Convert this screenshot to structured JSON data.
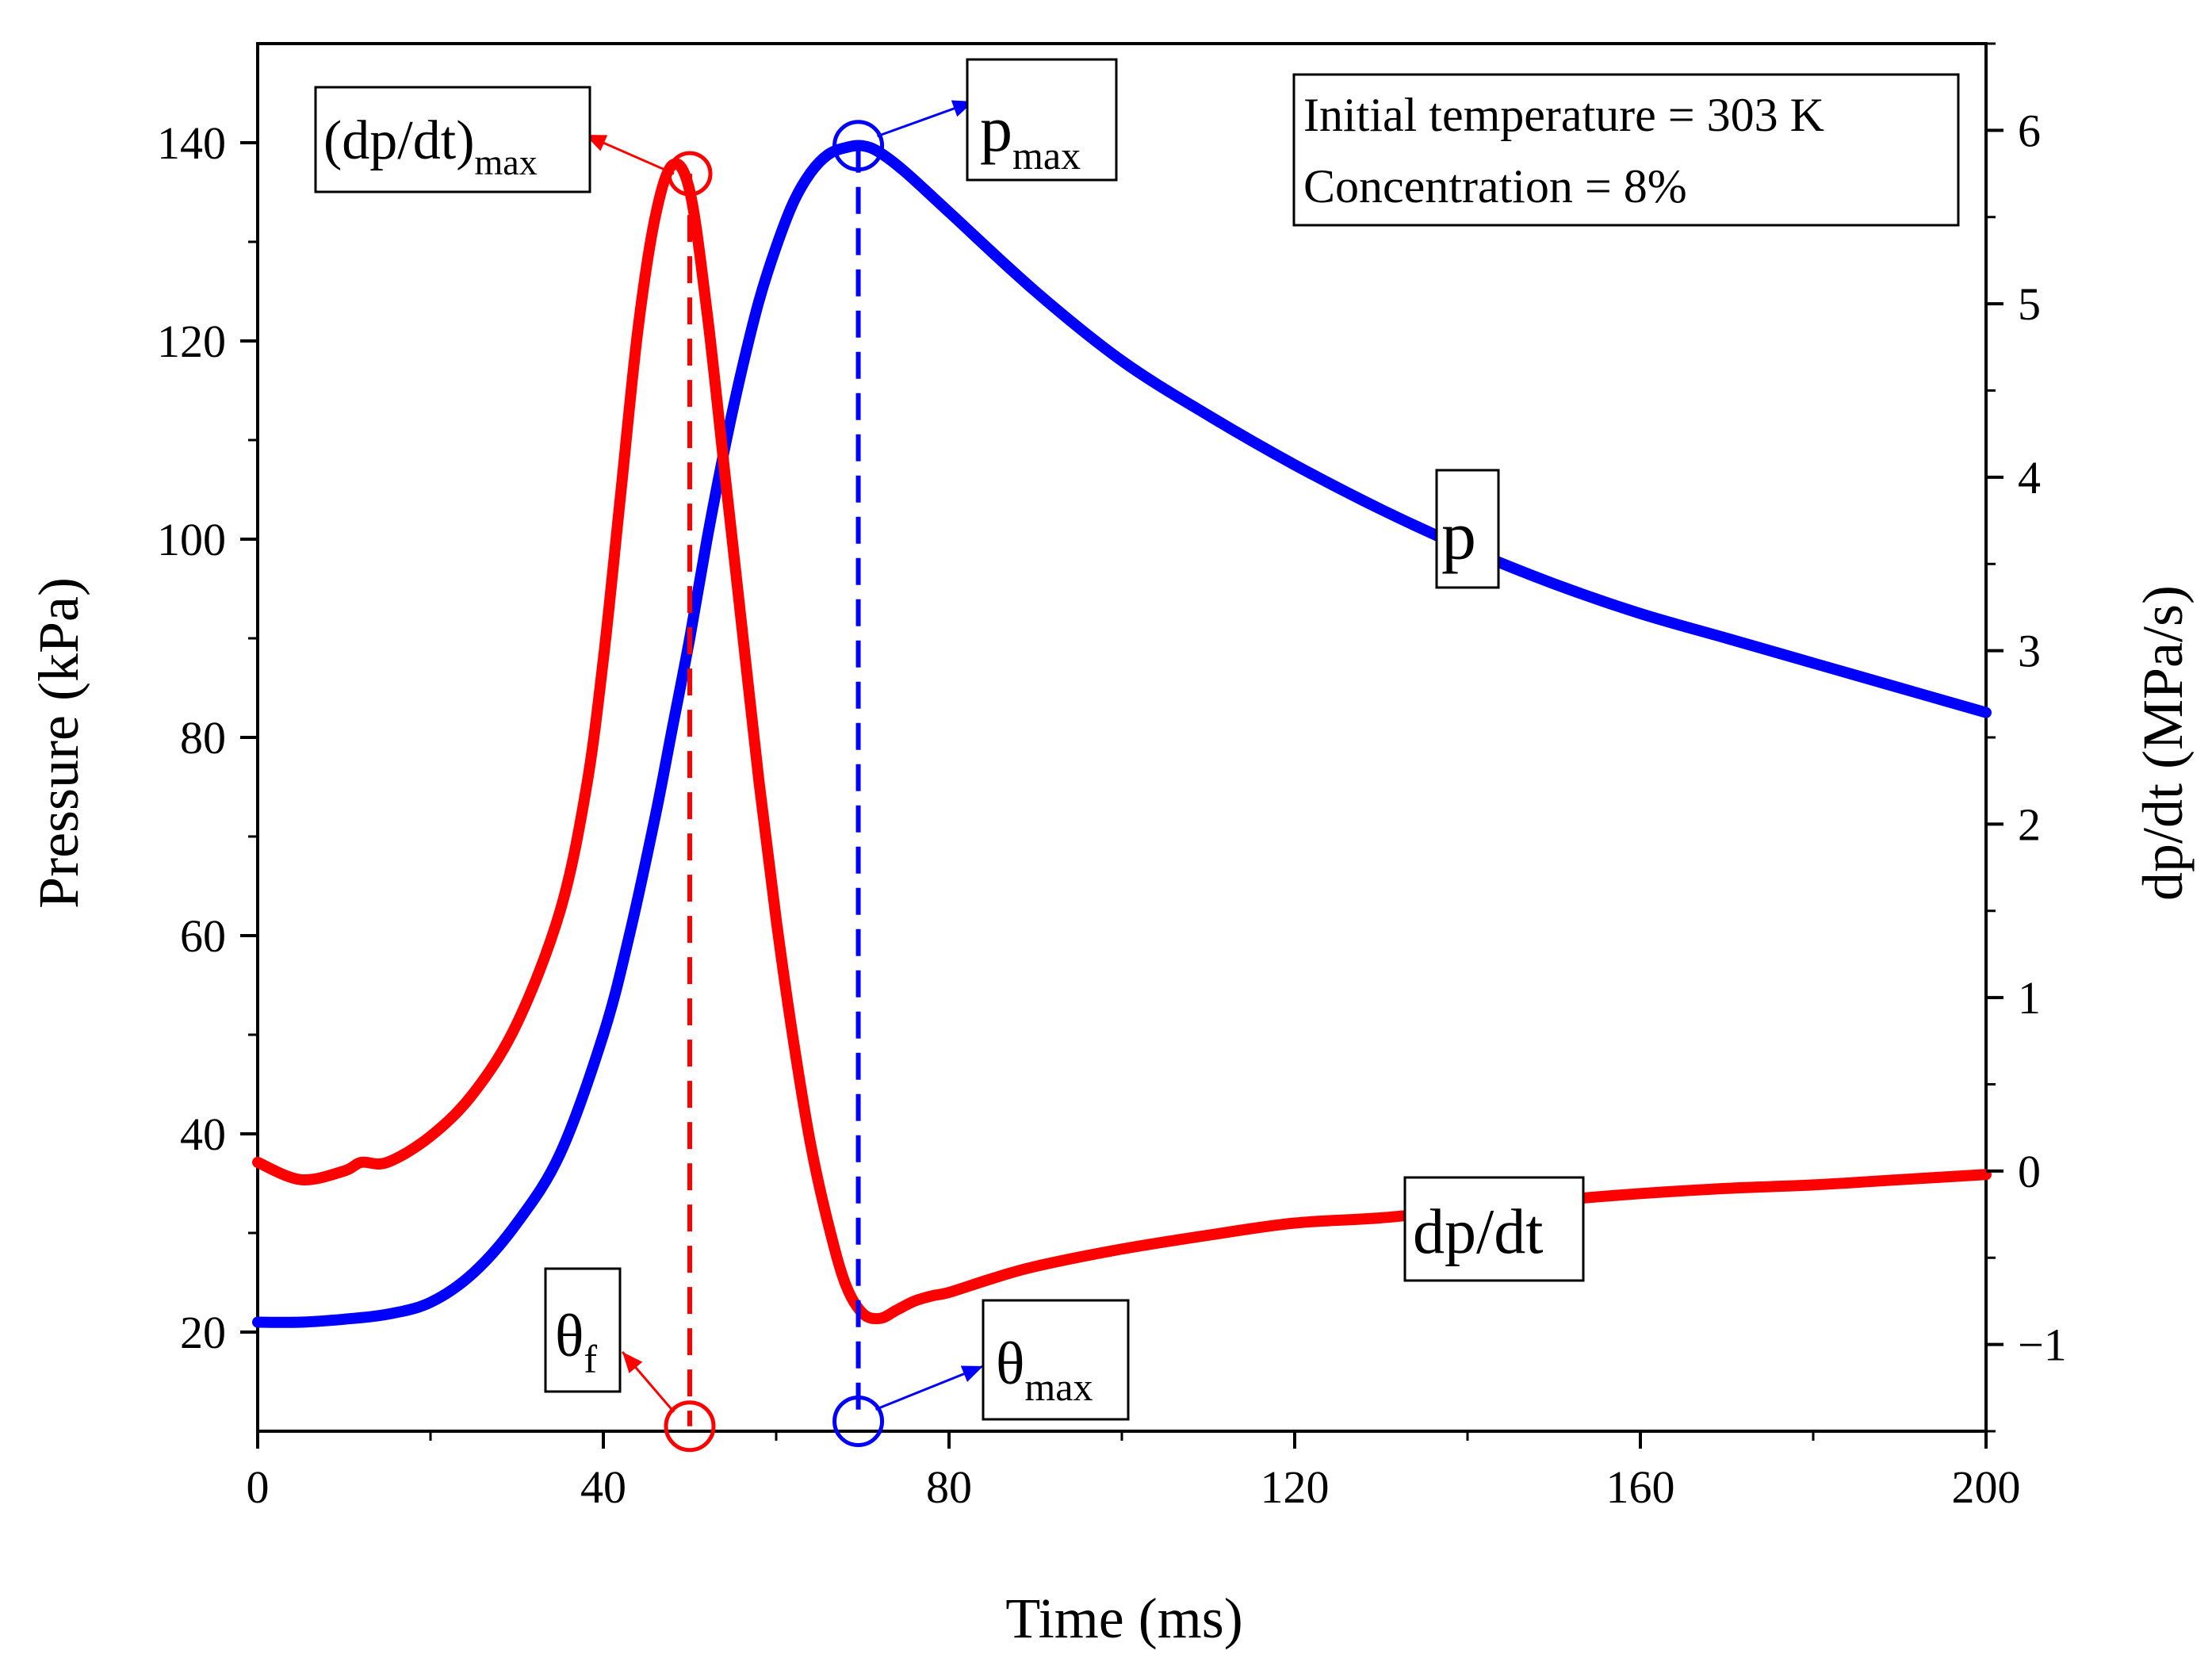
{
  "chart_data": {
    "type": "line",
    "title": "",
    "xlabel": "Time (ms)",
    "ylabel_left": "Pressure (kPa)",
    "ylabel_right": "dp/dt (MPa/s)",
    "xlim": [
      0,
      200
    ],
    "ylim_left": [
      10,
      150
    ],
    "ylim_right": [
      -1.5,
      6.5
    ],
    "x_ticks": [
      0,
      40,
      80,
      120,
      160,
      200
    ],
    "y_left_ticks": [
      20,
      40,
      60,
      80,
      100,
      120,
      140
    ],
    "y_right_ticks": [
      -1,
      0,
      1,
      2,
      3,
      4,
      5,
      6
    ],
    "y_right_tick_labels": [
      "−1",
      "0",
      "1",
      "2",
      "3",
      "4",
      "5",
      "6"
    ],
    "grid": false,
    "info_box": {
      "line1": "Initial temperature = 303 K",
      "line2": "Concentration = 8%"
    },
    "series": [
      {
        "name": "p",
        "axis": "left",
        "color": "#0000ff",
        "label": "p",
        "x": [
          0,
          5,
          10,
          15,
          20,
          25,
          30,
          35,
          40,
          43,
          46,
          48,
          50,
          52,
          54,
          56,
          58,
          60,
          62,
          64,
          66,
          68,
          70,
          72,
          75,
          80,
          90,
          100,
          110,
          120,
          130,
          140,
          150,
          160,
          170,
          180,
          190,
          200
        ],
        "values": [
          21,
          21,
          21.3,
          21.8,
          23,
          26,
          31,
          38,
          50,
          60,
          72,
          81,
          90,
          100,
          109,
          117,
          124,
          129.5,
          134,
          137,
          138.8,
          139.5,
          139.7,
          139,
          137,
          133,
          125,
          118,
          112.5,
          107.5,
          103,
          99,
          95.5,
          92.5,
          90,
          87.5,
          85,
          82.5
        ]
      },
      {
        "name": "dp/dt",
        "axis": "right",
        "color": "#ff0000",
        "label": "dp/dt",
        "x": [
          0,
          5,
          10,
          12,
          15,
          20,
          25,
          30,
          35,
          38,
          40,
          42,
          44,
          46,
          48,
          50,
          52,
          54,
          56,
          58,
          60,
          62,
          64,
          66,
          68,
          70,
          72,
          74,
          76,
          78,
          80,
          85,
          90,
          100,
          110,
          120,
          130,
          140,
          150,
          160,
          170,
          180,
          190,
          200
        ],
        "values": [
          0.05,
          -0.05,
          0.0,
          0.05,
          0.05,
          0.2,
          0.45,
          0.85,
          1.5,
          2.2,
          2.95,
          3.9,
          4.85,
          5.5,
          5.8,
          5.65,
          4.95,
          4.05,
          3.15,
          2.25,
          1.45,
          0.75,
          0.15,
          -0.3,
          -0.65,
          -0.82,
          -0.85,
          -0.8,
          -0.75,
          -0.72,
          -0.7,
          -0.62,
          -0.55,
          -0.45,
          -0.37,
          -0.3,
          -0.27,
          -0.22,
          -0.17,
          -0.13,
          -0.1,
          -0.08,
          -0.05,
          -0.02
        ]
      }
    ],
    "annotations": {
      "dpdt_max": {
        "label": "(dp/dt)",
        "sub": "max",
        "x": 50,
        "y_right": 5.75,
        "color": "#ff0000"
      },
      "p_max": {
        "label": "p",
        "sub": "max",
        "x": 69.5,
        "y_left": 139.7,
        "color": "#0000ff"
      },
      "theta_f": {
        "label": "θ",
        "sub": "f",
        "x": 50,
        "y_left": 10.5,
        "color": "#ff0000"
      },
      "theta_max": {
        "label": "θ",
        "sub": "max",
        "x": 69.5,
        "y_left": 11,
        "color": "#0000ff"
      },
      "p_label": {
        "label": "p"
      },
      "dpdt_label": {
        "label": "dp/dt"
      }
    }
  }
}
